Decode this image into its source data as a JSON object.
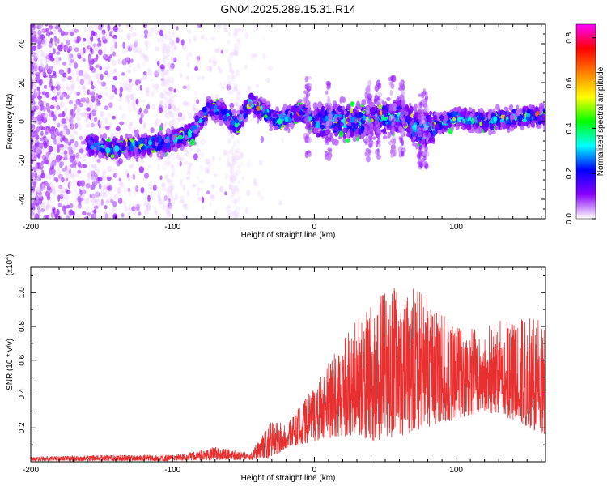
{
  "title": "GN04.2025.289.15.31.R14",
  "chart_data": [
    {
      "type": "heatmap",
      "name": "spectrogram",
      "xlabel": "Height of straight line (km)",
      "ylabel": "Frequency (Hz)",
      "xlim": [
        -200,
        163
      ],
      "ylim": [
        -50,
        50
      ],
      "x_ticks": [
        -200,
        -100,
        0,
        100
      ],
      "y_ticks": [
        -40,
        -20,
        0,
        20,
        40
      ],
      "colorbar": {
        "label": "Normalized spectral amplitude",
        "range": [
          0.0,
          0.86
        ],
        "ticks": [
          "0.0",
          "0.2",
          "0.4",
          "0.6",
          "0.8"
        ],
        "colors": [
          "#ffffff",
          "#8a00ff",
          "#0000ff",
          "#00ffff",
          "#00ff00",
          "#ffff00",
          "#ff8000",
          "#ff0000",
          "#ff00ff"
        ]
      },
      "ridge": [
        {
          "x": -155,
          "y": -12
        },
        {
          "x": -145,
          "y": -14
        },
        {
          "x": -120,
          "y": -12
        },
        {
          "x": -100,
          "y": -10
        },
        {
          "x": -85,
          "y": -5
        },
        {
          "x": -75,
          "y": 7
        },
        {
          "x": -65,
          "y": 5
        },
        {
          "x": -55,
          "y": -2
        },
        {
          "x": -45,
          "y": 10
        },
        {
          "x": -35,
          "y": 5
        },
        {
          "x": -25,
          "y": 0
        },
        {
          "x": -10,
          "y": 5
        },
        {
          "x": 0,
          "y": 0
        },
        {
          "x": 20,
          "y": 0
        },
        {
          "x": 40,
          "y": 0
        },
        {
          "x": 60,
          "y": 3
        },
        {
          "x": 75,
          "y": -5
        },
        {
          "x": 85,
          "y": -2
        },
        {
          "x": 100,
          "y": 2
        },
        {
          "x": 120,
          "y": 0
        },
        {
          "x": 140,
          "y": 2
        },
        {
          "x": 163,
          "y": 3
        }
      ]
    },
    {
      "type": "line",
      "name": "snr",
      "xlabel": "Height of straight line (km)",
      "ylabel": "SNR (10 * v/v)",
      "multiplier_label": "(x10",
      "multiplier_exponent": "4",
      "multiplier_close": ")",
      "xlim": [
        -200,
        163
      ],
      "ylim": [
        0,
        1.15
      ],
      "x_ticks": [
        -200,
        -100,
        0,
        100
      ],
      "y_ticks": [
        "0.2",
        "0.4",
        "0.6",
        "0.8",
        "1.0"
      ],
      "series": [
        {
          "name": "SNR",
          "color": "#e83030",
          "envelope": [
            {
              "x": -200,
              "low": 0.005,
              "high": 0.03
            },
            {
              "x": -150,
              "low": 0.005,
              "high": 0.04
            },
            {
              "x": -100,
              "low": 0.005,
              "high": 0.04
            },
            {
              "x": -70,
              "low": 0.01,
              "high": 0.09
            },
            {
              "x": -45,
              "low": 0.01,
              "high": 0.05
            },
            {
              "x": -30,
              "low": 0.02,
              "high": 0.25
            },
            {
              "x": -20,
              "low": 0.08,
              "high": 0.22
            },
            {
              "x": 0,
              "low": 0.12,
              "high": 0.45
            },
            {
              "x": 20,
              "low": 0.15,
              "high": 0.75
            },
            {
              "x": 40,
              "low": 0.12,
              "high": 0.95
            },
            {
              "x": 60,
              "low": 0.15,
              "high": 1.05
            },
            {
              "x": 80,
              "low": 0.2,
              "high": 1.0
            },
            {
              "x": 100,
              "low": 0.25,
              "high": 0.8
            },
            {
              "x": 120,
              "low": 0.3,
              "high": 0.8
            },
            {
              "x": 140,
              "low": 0.25,
              "high": 0.88
            },
            {
              "x": 163,
              "low": 0.15,
              "high": 0.85
            }
          ]
        }
      ]
    }
  ]
}
